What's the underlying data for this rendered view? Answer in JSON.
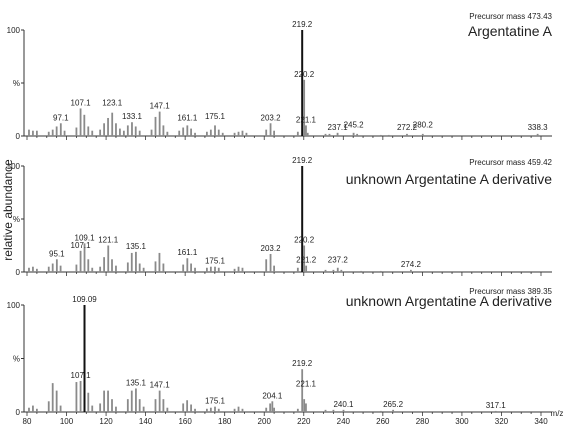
{
  "chart_data": {
    "type": "bar",
    "ylabel": "relative abundance",
    "xlabel": "m/z",
    "xlim": [
      80,
      340
    ],
    "x_ticks": [
      80,
      100,
      120,
      140,
      160,
      180,
      200,
      220,
      240,
      260,
      280,
      300,
      320,
      340
    ],
    "ylim": [
      0,
      100
    ],
    "y_tick_labels": [
      "100",
      "%",
      "0"
    ],
    "panels": [
      {
        "title": "Argentatine A",
        "precursor": "Precursor mass 473.43",
        "peaks": [
          {
            "x": 81,
            "y": 6
          },
          {
            "x": 83,
            "y": 5
          },
          {
            "x": 85,
            "y": 5
          },
          {
            "x": 91,
            "y": 4
          },
          {
            "x": 93,
            "y": 6
          },
          {
            "x": 95,
            "y": 9
          },
          {
            "x": 97.1,
            "y": 12
          },
          {
            "x": 99,
            "y": 5
          },
          {
            "x": 105,
            "y": 8
          },
          {
            "x": 107.1,
            "y": 26
          },
          {
            "x": 109,
            "y": 20
          },
          {
            "x": 111,
            "y": 9
          },
          {
            "x": 113,
            "y": 5
          },
          {
            "x": 117,
            "y": 6
          },
          {
            "x": 119,
            "y": 12
          },
          {
            "x": 121,
            "y": 17
          },
          {
            "x": 123.1,
            "y": 22
          },
          {
            "x": 125,
            "y": 12
          },
          {
            "x": 127,
            "y": 7
          },
          {
            "x": 129,
            "y": 5
          },
          {
            "x": 131,
            "y": 10
          },
          {
            "x": 133.1,
            "y": 13
          },
          {
            "x": 135,
            "y": 9
          },
          {
            "x": 137,
            "y": 5
          },
          {
            "x": 143,
            "y": 6
          },
          {
            "x": 145,
            "y": 18
          },
          {
            "x": 147.1,
            "y": 23
          },
          {
            "x": 149,
            "y": 10
          },
          {
            "x": 151,
            "y": 4
          },
          {
            "x": 157,
            "y": 5
          },
          {
            "x": 159,
            "y": 8
          },
          {
            "x": 161.1,
            "y": 10
          },
          {
            "x": 163,
            "y": 7
          },
          {
            "x": 165,
            "y": 3
          },
          {
            "x": 171,
            "y": 4
          },
          {
            "x": 173,
            "y": 6
          },
          {
            "x": 175.1,
            "y": 10
          },
          {
            "x": 177,
            "y": 6
          },
          {
            "x": 179,
            "y": 3
          },
          {
            "x": 185,
            "y": 3
          },
          {
            "x": 187,
            "y": 4
          },
          {
            "x": 189,
            "y": 5
          },
          {
            "x": 191,
            "y": 3
          },
          {
            "x": 201,
            "y": 6
          },
          {
            "x": 203.2,
            "y": 12
          },
          {
            "x": 205,
            "y": 5
          },
          {
            "x": 217,
            "y": 4
          },
          {
            "x": 219.2,
            "y": 100
          },
          {
            "x": 220.2,
            "y": 53
          },
          {
            "x": 221.1,
            "y": 10
          },
          {
            "x": 222,
            "y": 3
          },
          {
            "x": 231,
            "y": 2
          },
          {
            "x": 233,
            "y": 2
          },
          {
            "x": 237.1,
            "y": 3
          },
          {
            "x": 245.2,
            "y": 3
          },
          {
            "x": 247,
            "y": 2
          },
          {
            "x": 259,
            "y": 1
          },
          {
            "x": 263,
            "y": 1
          },
          {
            "x": 272.2,
            "y": 2
          },
          {
            "x": 280.2,
            "y": 2
          },
          {
            "x": 338.3,
            "y": 2
          }
        ],
        "labels": [
          {
            "text": "97.1",
            "x": 97.1,
            "y": 12
          },
          {
            "text": "107.1",
            "x": 107.1,
            "y": 26
          },
          {
            "text": "123.1",
            "x": 123.1,
            "y": 26
          },
          {
            "text": "133.1",
            "x": 133.1,
            "y": 13
          },
          {
            "text": "147.1",
            "x": 147.1,
            "y": 23
          },
          {
            "text": "161.1",
            "x": 161.1,
            "y": 12
          },
          {
            "text": "175.1",
            "x": 175.1,
            "y": 13
          },
          {
            "text": "203.2",
            "x": 203.2,
            "y": 12
          },
          {
            "text": "219.2",
            "x": 219.2,
            "y": 100
          },
          {
            "text": "220.2",
            "x": 220.2,
            "y": 53
          },
          {
            "text": "221.1",
            "x": 221.1,
            "y": 10
          },
          {
            "text": "237.1",
            "x": 237.1,
            "y": 3
          },
          {
            "text": "245.2",
            "x": 245.2,
            "y": 5
          },
          {
            "text": "272.2",
            "x": 272.2,
            "y": 3
          },
          {
            "text": "280.2",
            "x": 280.2,
            "y": 5
          },
          {
            "text": "338.3",
            "x": 338.3,
            "y": 3
          }
        ]
      },
      {
        "title": "unknown Argentatine A derivative",
        "precursor": "Precursor mass 459.42",
        "peaks": [
          {
            "x": 81,
            "y": 4
          },
          {
            "x": 83,
            "y": 5
          },
          {
            "x": 85,
            "y": 3
          },
          {
            "x": 91,
            "y": 5
          },
          {
            "x": 93,
            "y": 8
          },
          {
            "x": 95.1,
            "y": 12
          },
          {
            "x": 97,
            "y": 6
          },
          {
            "x": 105,
            "y": 7
          },
          {
            "x": 107.1,
            "y": 20
          },
          {
            "x": 109.1,
            "y": 27
          },
          {
            "x": 111,
            "y": 12
          },
          {
            "x": 113,
            "y": 4
          },
          {
            "x": 117,
            "y": 5
          },
          {
            "x": 119,
            "y": 14
          },
          {
            "x": 121.1,
            "y": 25
          },
          {
            "x": 123,
            "y": 12
          },
          {
            "x": 125,
            "y": 6
          },
          {
            "x": 131,
            "y": 9
          },
          {
            "x": 133,
            "y": 18
          },
          {
            "x": 135.1,
            "y": 19
          },
          {
            "x": 137,
            "y": 8
          },
          {
            "x": 139,
            "y": 4
          },
          {
            "x": 145,
            "y": 10
          },
          {
            "x": 147,
            "y": 18
          },
          {
            "x": 149,
            "y": 8
          },
          {
            "x": 159,
            "y": 7
          },
          {
            "x": 161.1,
            "y": 13
          },
          {
            "x": 163,
            "y": 8
          },
          {
            "x": 165,
            "y": 4
          },
          {
            "x": 171,
            "y": 4
          },
          {
            "x": 173,
            "y": 5
          },
          {
            "x": 175.1,
            "y": 5
          },
          {
            "x": 177,
            "y": 4
          },
          {
            "x": 185,
            "y": 3
          },
          {
            "x": 187,
            "y": 5
          },
          {
            "x": 189,
            "y": 4
          },
          {
            "x": 201,
            "y": 12
          },
          {
            "x": 203.2,
            "y": 17
          },
          {
            "x": 205,
            "y": 6
          },
          {
            "x": 217,
            "y": 4
          },
          {
            "x": 219.2,
            "y": 100
          },
          {
            "x": 220.2,
            "y": 25
          },
          {
            "x": 221.2,
            "y": 6
          },
          {
            "x": 231,
            "y": 2
          },
          {
            "x": 235,
            "y": 2
          },
          {
            "x": 237.2,
            "y": 4
          },
          {
            "x": 239,
            "y": 2
          },
          {
            "x": 249,
            "y": 1
          },
          {
            "x": 259,
            "y": 1
          },
          {
            "x": 274.2,
            "y": 2
          }
        ],
        "labels": [
          {
            "text": "95.1",
            "x": 95.1,
            "y": 12
          },
          {
            "text": "107.1",
            "x": 107.1,
            "y": 20
          },
          {
            "text": "109.1",
            "x": 109.1,
            "y": 27
          },
          {
            "text": "121.1",
            "x": 121.1,
            "y": 25
          },
          {
            "text": "135.1",
            "x": 135.1,
            "y": 19
          },
          {
            "text": "161.1",
            "x": 161.1,
            "y": 13
          },
          {
            "text": "175.1",
            "x": 175.1,
            "y": 5
          },
          {
            "text": "203.2",
            "x": 203.2,
            "y": 17
          },
          {
            "text": "219.2",
            "x": 219.2,
            "y": 100
          },
          {
            "text": "220.2",
            "x": 220.2,
            "y": 25
          },
          {
            "text": "221.2",
            "x": 221.2,
            "y": 6
          },
          {
            "text": "237.2",
            "x": 237.2,
            "y": 6
          },
          {
            "text": "274.2",
            "x": 274.2,
            "y": 2
          }
        ]
      },
      {
        "title": "unknown Argentatine A derivative",
        "precursor": "Precursor mass 389.35",
        "peaks": [
          {
            "x": 81,
            "y": 4
          },
          {
            "x": 83,
            "y": 6
          },
          {
            "x": 85,
            "y": 3
          },
          {
            "x": 91,
            "y": 10
          },
          {
            "x": 93,
            "y": 27
          },
          {
            "x": 95,
            "y": 20
          },
          {
            "x": 97,
            "y": 6
          },
          {
            "x": 105,
            "y": 28
          },
          {
            "x": 107.1,
            "y": 29
          },
          {
            "x": 109.09,
            "y": 100
          },
          {
            "x": 111,
            "y": 18
          },
          {
            "x": 113,
            "y": 6
          },
          {
            "x": 117,
            "y": 8
          },
          {
            "x": 119,
            "y": 20
          },
          {
            "x": 121,
            "y": 20
          },
          {
            "x": 123,
            "y": 12
          },
          {
            "x": 125,
            "y": 5
          },
          {
            "x": 131,
            "y": 12
          },
          {
            "x": 133,
            "y": 20
          },
          {
            "x": 135.1,
            "y": 22
          },
          {
            "x": 137,
            "y": 12
          },
          {
            "x": 139,
            "y": 5
          },
          {
            "x": 145,
            "y": 12
          },
          {
            "x": 147.1,
            "y": 20
          },
          {
            "x": 149,
            "y": 12
          },
          {
            "x": 151,
            "y": 4
          },
          {
            "x": 159,
            "y": 8
          },
          {
            "x": 161,
            "y": 11
          },
          {
            "x": 163,
            "y": 7
          },
          {
            "x": 165,
            "y": 3
          },
          {
            "x": 171,
            "y": 3
          },
          {
            "x": 173,
            "y": 4
          },
          {
            "x": 175.1,
            "y": 5
          },
          {
            "x": 177,
            "y": 3
          },
          {
            "x": 185,
            "y": 3
          },
          {
            "x": 187,
            "y": 5
          },
          {
            "x": 189,
            "y": 3
          },
          {
            "x": 201,
            "y": 4
          },
          {
            "x": 203,
            "y": 8
          },
          {
            "x": 204.1,
            "y": 10
          },
          {
            "x": 205,
            "y": 4
          },
          {
            "x": 217,
            "y": 3
          },
          {
            "x": 219.2,
            "y": 40
          },
          {
            "x": 220.2,
            "y": 12
          },
          {
            "x": 221.1,
            "y": 8
          },
          {
            "x": 231,
            "y": 2
          },
          {
            "x": 235,
            "y": 2
          },
          {
            "x": 240.1,
            "y": 2
          },
          {
            "x": 259,
            "y": 1
          },
          {
            "x": 265.2,
            "y": 2
          },
          {
            "x": 317.1,
            "y": 1
          }
        ],
        "labels": [
          {
            "text": "107.1",
            "x": 107.1,
            "y": 29
          },
          {
            "text": "109.09",
            "x": 109.09,
            "y": 100
          },
          {
            "text": "135.1",
            "x": 135.1,
            "y": 22
          },
          {
            "text": "147.1",
            "x": 147.1,
            "y": 20
          },
          {
            "text": "175.1",
            "x": 175.1,
            "y": 5
          },
          {
            "text": "204.1",
            "x": 204.1,
            "y": 10
          },
          {
            "text": "219.2",
            "x": 219.2,
            "y": 40
          },
          {
            "text": "221.1",
            "x": 221.1,
            "y": 21
          },
          {
            "text": "240.1",
            "x": 240.1,
            "y": 2
          },
          {
            "text": "265.2",
            "x": 265.2,
            "y": 2
          },
          {
            "text": "317.1",
            "x": 317.1,
            "y": 1
          }
        ]
      }
    ]
  }
}
